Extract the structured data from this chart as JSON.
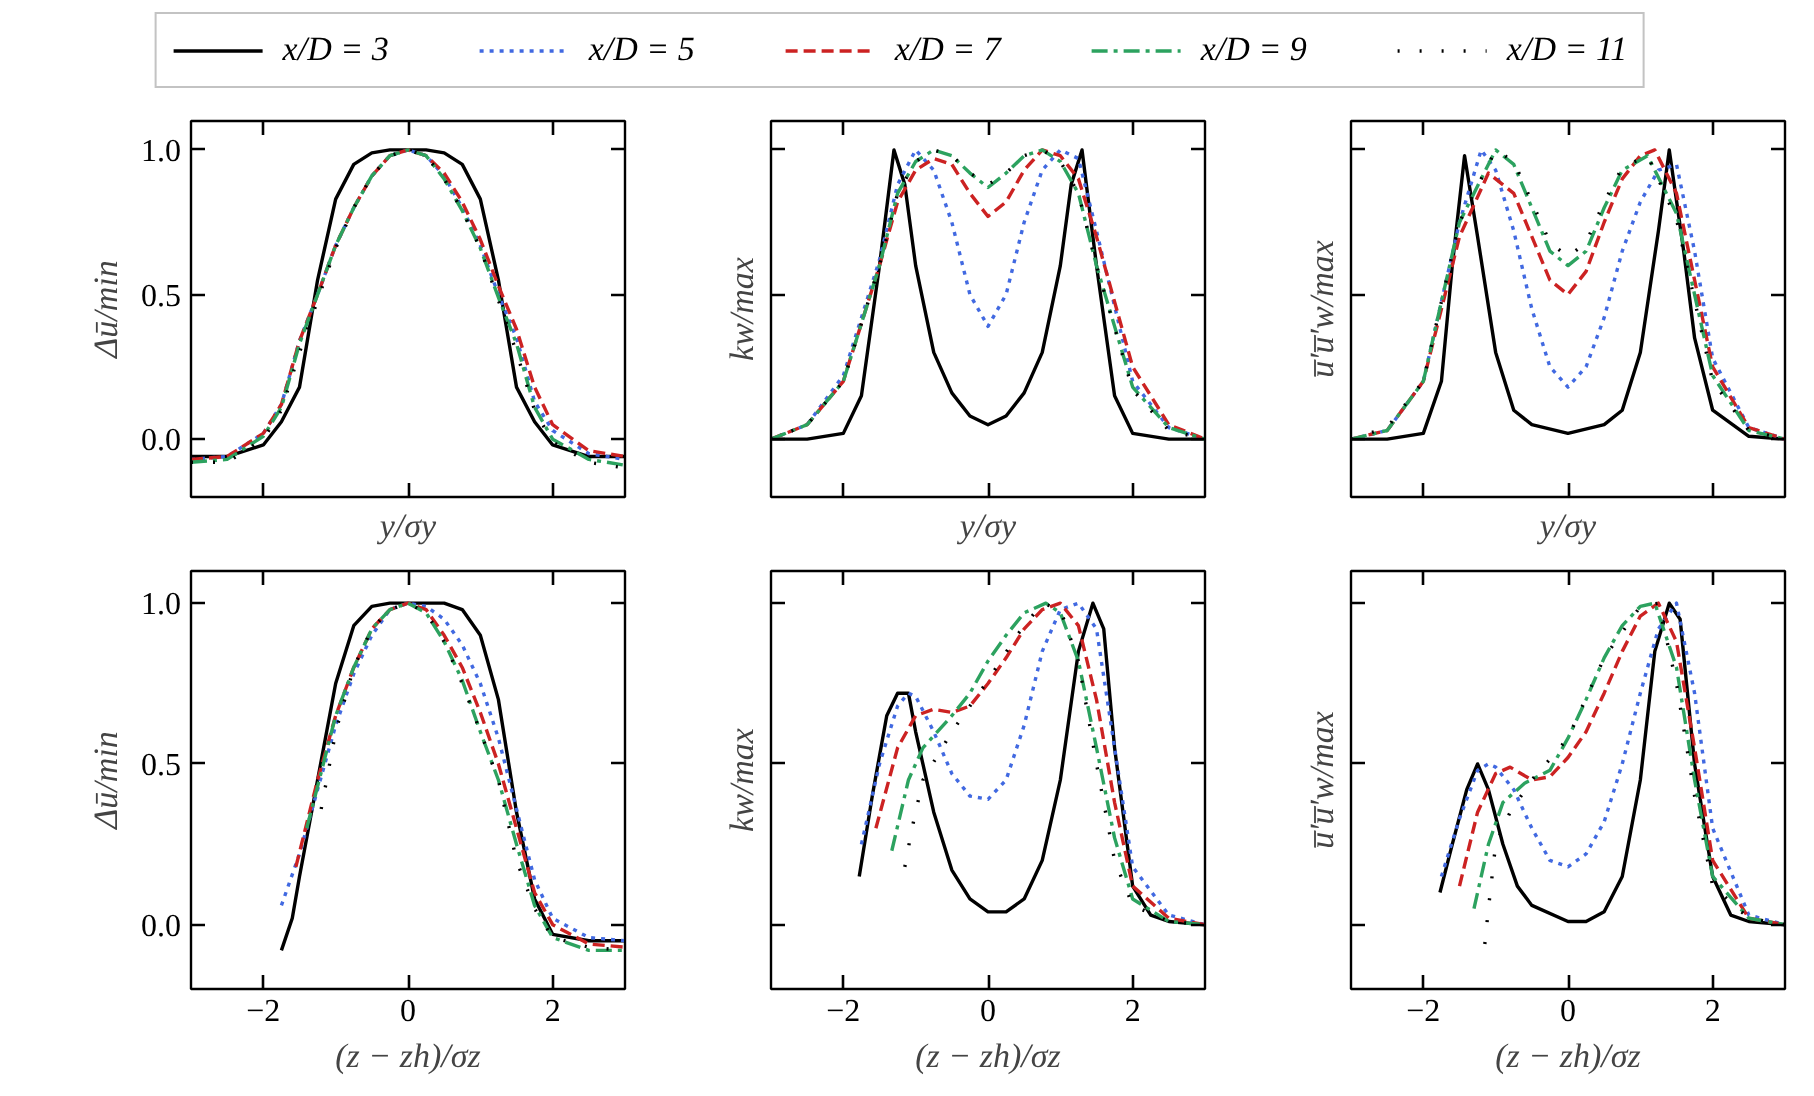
{
  "chart_data": [
    {
      "type": "line",
      "ylabel": "Δū/min",
      "xlabel": "y/σy",
      "xlim": [
        -3,
        3
      ],
      "ylim": [
        -0.2,
        1.1
      ],
      "xticks": [
        {
          "value": -2,
          "label": null
        },
        {
          "value": 0,
          "label": null
        },
        {
          "value": 2,
          "label": null
        }
      ],
      "yticks": [
        {
          "value": 0,
          "label": "0.0"
        },
        {
          "value": 0.5,
          "label": "0.5"
        },
        {
          "value": 1,
          "label": "1.0"
        }
      ],
      "tick_labels": "y",
      "legend": "top",
      "series": [
        {
          "name": "x/D = 3",
          "color": "#000000",
          "line_style": "solid",
          "x": [
            -3,
            -2.5,
            -2,
            -1.75,
            -1.5,
            -1.25,
            -1,
            -0.75,
            -0.5,
            -0.25,
            0,
            0.25,
            0.5,
            0.75,
            1,
            1.25,
            1.5,
            1.75,
            2,
            2.5,
            3
          ],
          "values": [
            -0.06,
            -0.06,
            -0.02,
            0.06,
            0.18,
            0.55,
            0.83,
            0.95,
            0.99,
            1.0,
            1.0,
            1.0,
            0.99,
            0.95,
            0.83,
            0.55,
            0.18,
            0.06,
            -0.02,
            -0.06,
            -0.06
          ]
        },
        {
          "name": "x/D = 5",
          "color": "#4169e1",
          "line_style": "dotted",
          "x": [
            -3,
            -2.5,
            -2,
            -1.75,
            -1.5,
            -1.25,
            -1,
            -0.75,
            -0.5,
            -0.25,
            0,
            0.25,
            0.5,
            0.75,
            1,
            1.25,
            1.5,
            1.75,
            2,
            2.5,
            3
          ],
          "values": [
            -0.07,
            -0.06,
            0.02,
            0.12,
            0.34,
            0.5,
            0.67,
            0.8,
            0.91,
            0.98,
            1.0,
            0.98,
            0.91,
            0.8,
            0.67,
            0.5,
            0.35,
            0.13,
            0.03,
            -0.05,
            -0.07
          ]
        },
        {
          "name": "x/D = 7",
          "color": "#cc2222",
          "line_style": "dashed",
          "x": [
            -3,
            -2.5,
            -2,
            -1.75,
            -1.5,
            -1.25,
            -1,
            -0.75,
            -0.5,
            -0.25,
            0,
            0.25,
            0.5,
            0.75,
            1,
            1.25,
            1.5,
            1.75,
            2,
            2.5,
            3
          ],
          "values": [
            -0.07,
            -0.06,
            0.02,
            0.12,
            0.34,
            0.5,
            0.67,
            0.8,
            0.91,
            0.98,
            1.0,
            0.98,
            0.92,
            0.82,
            0.69,
            0.53,
            0.38,
            0.18,
            0.05,
            -0.04,
            -0.06
          ]
        },
        {
          "name": "x/D = 9",
          "color": "#2ca25f",
          "line_style": "dashdot",
          "x": [
            -3,
            -2.5,
            -2,
            -1.75,
            -1.5,
            -1.25,
            -1,
            -0.75,
            -0.5,
            -0.25,
            0,
            0.25,
            0.5,
            0.75,
            1,
            1.25,
            1.5,
            1.75,
            2,
            2.5,
            3
          ],
          "values": [
            -0.08,
            -0.07,
            0.01,
            0.11,
            0.33,
            0.5,
            0.67,
            0.8,
            0.91,
            0.98,
            1.0,
            0.98,
            0.9,
            0.79,
            0.66,
            0.49,
            0.33,
            0.11,
            0.0,
            -0.07,
            -0.09
          ]
        },
        {
          "name": "x/D = 11",
          "color": "#000000",
          "line_style": "loosely_dotted",
          "x": [
            -3,
            -2.5,
            -2,
            -1.75,
            -1.5,
            -1.25,
            -1,
            -0.75,
            -0.5,
            -0.25,
            0,
            0.25,
            0.5,
            0.75,
            1,
            1.25,
            1.5,
            1.75,
            2,
            2.5,
            3
          ],
          "values": [
            -0.08,
            -0.08,
            0.0,
            0.1,
            0.3,
            0.48,
            0.66,
            0.8,
            0.91,
            0.98,
            1.0,
            0.98,
            0.9,
            0.79,
            0.66,
            0.48,
            0.3,
            0.1,
            -0.01,
            -0.08,
            -0.1
          ]
        }
      ]
    },
    {
      "type": "line",
      "ylabel": "kw/max",
      "xlabel": "y/σy",
      "xlim": [
        -3,
        3
      ],
      "ylim": [
        -0.2,
        1.1
      ],
      "xticks": [
        {
          "value": -2,
          "label": null
        },
        {
          "value": 0,
          "label": null
        },
        {
          "value": 2,
          "label": null
        }
      ],
      "yticks": [
        {
          "value": 0,
          "label": null
        },
        {
          "value": 0.5,
          "label": null
        },
        {
          "value": 1,
          "label": null
        }
      ],
      "tick_labels": false,
      "series": [
        {
          "color": "#000000",
          "line_style": "solid",
          "x": [
            -3,
            -2.5,
            -2,
            -1.75,
            -1.5,
            -1.3,
            -1.15,
            -1,
            -0.75,
            -0.5,
            -0.25,
            0,
            0.25,
            0.5,
            0.75,
            1,
            1.15,
            1.3,
            1.5,
            1.75,
            2,
            2.5,
            3
          ],
          "values": [
            0,
            0,
            0.02,
            0.15,
            0.6,
            1.0,
            0.88,
            0.6,
            0.3,
            0.16,
            0.08,
            0.05,
            0.08,
            0.16,
            0.3,
            0.6,
            0.88,
            1.0,
            0.6,
            0.15,
            0.02,
            0,
            0
          ]
        },
        {
          "color": "#4169e1",
          "line_style": "dotted",
          "x": [
            -3,
            -2.5,
            -2,
            -1.5,
            -1.25,
            -1,
            -0.75,
            -0.5,
            -0.25,
            0,
            0.25,
            0.5,
            0.75,
            1,
            1.25,
            1.5,
            2,
            2.5,
            3
          ],
          "values": [
            0,
            0.05,
            0.22,
            0.62,
            0.88,
            1.0,
            0.93,
            0.75,
            0.5,
            0.39,
            0.5,
            0.75,
            0.93,
            1.0,
            0.97,
            0.72,
            0.2,
            0.04,
            0
          ]
        },
        {
          "color": "#cc2222",
          "line_style": "dashed",
          "x": [
            -3,
            -2.5,
            -2,
            -1.5,
            -1.25,
            -1,
            -0.75,
            -0.5,
            -0.25,
            0,
            0.25,
            0.5,
            0.75,
            1,
            1.25,
            1.5,
            2,
            2.5,
            3
          ],
          "values": [
            0,
            0.05,
            0.2,
            0.6,
            0.82,
            0.93,
            0.97,
            0.95,
            0.85,
            0.77,
            0.82,
            0.93,
            1.0,
            0.98,
            0.9,
            0.7,
            0.25,
            0.05,
            0
          ]
        },
        {
          "color": "#2ca25f",
          "line_style": "dashdot",
          "x": [
            -3,
            -2.5,
            -2,
            -1.5,
            -1.25,
            -1,
            -0.75,
            -0.5,
            -0.25,
            0,
            0.25,
            0.5,
            0.75,
            1,
            1.25,
            1.5,
            2,
            2.5,
            3
          ],
          "values": [
            0,
            0.05,
            0.2,
            0.6,
            0.85,
            0.96,
            1.0,
            0.98,
            0.92,
            0.87,
            0.92,
            0.98,
            1.0,
            0.96,
            0.85,
            0.6,
            0.18,
            0.04,
            0
          ]
        },
        {
          "color": "#000000",
          "line_style": "loosely_dotted",
          "x": [
            -3,
            -2.5,
            -2,
            -1.5,
            -1.25,
            -1,
            -0.75,
            -0.5,
            -0.25,
            0,
            0.25,
            0.5,
            0.75,
            1,
            1.25,
            1.5,
            2,
            2.5,
            3
          ],
          "values": [
            0,
            0.05,
            0.2,
            0.6,
            0.85,
            0.96,
            1.0,
            0.98,
            0.92,
            0.88,
            0.92,
            0.98,
            1.0,
            0.96,
            0.85,
            0.6,
            0.17,
            0.03,
            0
          ]
        }
      ]
    },
    {
      "type": "line",
      "ylabel": "u̅′u̅′w/max",
      "xlabel": "y/σy",
      "xlim": [
        -3,
        3
      ],
      "ylim": [
        -0.2,
        1.1
      ],
      "xticks": [
        {
          "value": -2,
          "label": null
        },
        {
          "value": 0,
          "label": null
        },
        {
          "value": 2,
          "label": null
        }
      ],
      "yticks": [
        {
          "value": 0,
          "label": null
        },
        {
          "value": 0.5,
          "label": null
        },
        {
          "value": 1,
          "label": null
        }
      ],
      "tick_labels": false,
      "series": [
        {
          "color": "#000000",
          "line_style": "solid",
          "x": [
            -3,
            -2.5,
            -2,
            -1.75,
            -1.6,
            -1.43,
            -1.25,
            -1,
            -0.75,
            -0.5,
            0,
            0.5,
            0.75,
            1,
            1.25,
            1.4,
            1.6,
            1.75,
            2,
            2.5,
            3
          ],
          "values": [
            0,
            0,
            0.02,
            0.2,
            0.6,
            0.98,
            0.7,
            0.3,
            0.1,
            0.05,
            0.02,
            0.05,
            0.1,
            0.3,
            0.72,
            1.0,
            0.65,
            0.35,
            0.1,
            0.01,
            0
          ]
        },
        {
          "color": "#4169e1",
          "line_style": "dotted",
          "x": [
            -3,
            -2.5,
            -2,
            -1.5,
            -1.2,
            -1,
            -0.75,
            -0.5,
            -0.25,
            0,
            0.25,
            0.5,
            0.75,
            1,
            1.25,
            1.5,
            1.75,
            2,
            2.5,
            3
          ],
          "values": [
            0,
            0.03,
            0.2,
            0.75,
            1.0,
            0.93,
            0.72,
            0.45,
            0.25,
            0.18,
            0.25,
            0.42,
            0.65,
            0.82,
            0.93,
            0.95,
            0.65,
            0.28,
            0.04,
            0
          ]
        },
        {
          "color": "#cc2222",
          "line_style": "dashed",
          "x": [
            -3,
            -2.5,
            -2,
            -1.5,
            -1.1,
            -0.75,
            -0.5,
            -0.25,
            0,
            0.25,
            0.5,
            0.75,
            1,
            1.2,
            1.5,
            1.75,
            2,
            2.5,
            3
          ],
          "values": [
            0,
            0.03,
            0.2,
            0.7,
            0.92,
            0.85,
            0.7,
            0.55,
            0.5,
            0.58,
            0.75,
            0.9,
            0.98,
            1.0,
            0.85,
            0.55,
            0.25,
            0.04,
            0
          ]
        },
        {
          "color": "#2ca25f",
          "line_style": "dashdot",
          "x": [
            -3,
            -2.5,
            -2,
            -1.5,
            -1,
            -0.75,
            -0.5,
            -0.25,
            0,
            0.25,
            0.5,
            0.75,
            1.1,
            1.5,
            1.75,
            2,
            2.5,
            3
          ],
          "values": [
            0,
            0.03,
            0.2,
            0.75,
            1.0,
            0.95,
            0.8,
            0.65,
            0.6,
            0.65,
            0.8,
            0.93,
            0.98,
            0.78,
            0.5,
            0.22,
            0.03,
            0
          ]
        },
        {
          "color": "#000000",
          "line_style": "loosely_dotted",
          "x": [
            -3,
            -2.5,
            -2,
            -1.5,
            -1,
            -0.75,
            -0.5,
            -0.25,
            0,
            0.25,
            0.5,
            0.75,
            1.1,
            1.5,
            1.75,
            2,
            2.5,
            3
          ],
          "values": [
            0,
            0.04,
            0.2,
            0.75,
            1.0,
            0.96,
            0.82,
            0.68,
            0.63,
            0.68,
            0.82,
            0.94,
            0.98,
            0.76,
            0.48,
            0.2,
            0.03,
            0
          ]
        }
      ]
    },
    {
      "type": "line",
      "ylabel": "Δū/min",
      "xlabel": "(z − zh)/σz",
      "xlim": [
        -3,
        3
      ],
      "ylim": [
        -0.2,
        1.1
      ],
      "xticks": [
        {
          "value": -2,
          "label": "−2"
        },
        {
          "value": 0,
          "label": "0"
        },
        {
          "value": 2,
          "label": "2"
        }
      ],
      "yticks": [
        {
          "value": 0,
          "label": "0.0"
        },
        {
          "value": 0.5,
          "label": "0.5"
        },
        {
          "value": 1,
          "label": "1.0"
        }
      ],
      "series": [
        {
          "color": "#000000",
          "line_style": "solid",
          "x": [
            -1.75,
            -1.6,
            -1.5,
            -1.25,
            -1,
            -0.75,
            -0.5,
            -0.25,
            0,
            0.5,
            0.75,
            1,
            1.25,
            1.5,
            1.75,
            2,
            2.5,
            3
          ],
          "values": [
            -0.08,
            0.02,
            0.15,
            0.45,
            0.75,
            0.93,
            0.99,
            1.0,
            1.0,
            1.0,
            0.98,
            0.9,
            0.7,
            0.35,
            0.08,
            -0.03,
            -0.05,
            -0.05
          ]
        },
        {
          "color": "#4169e1",
          "line_style": "dotted",
          "x": [
            -1.75,
            -1.5,
            -1.25,
            -1,
            -0.75,
            -0.5,
            -0.25,
            0,
            0.25,
            0.5,
            0.75,
            1,
            1.25,
            1.5,
            1.75,
            2,
            2.5,
            3
          ],
          "values": [
            0.06,
            0.22,
            0.42,
            0.62,
            0.78,
            0.9,
            0.98,
            1.0,
            0.99,
            0.95,
            0.87,
            0.75,
            0.58,
            0.36,
            0.14,
            0.02,
            -0.04,
            -0.05
          ]
        },
        {
          "color": "#cc2222",
          "line_style": "dashed",
          "x": [
            -1.55,
            -1.25,
            -1,
            -0.75,
            -0.5,
            -0.25,
            0,
            0.25,
            0.5,
            0.75,
            1,
            1.25,
            1.5,
            1.75,
            2,
            2.5,
            3
          ],
          "values": [
            0.18,
            0.45,
            0.65,
            0.8,
            0.92,
            0.98,
            1.0,
            0.98,
            0.9,
            0.8,
            0.66,
            0.5,
            0.3,
            0.1,
            0.0,
            -0.06,
            -0.07
          ]
        },
        {
          "color": "#2ca25f",
          "line_style": "dashdot",
          "x": [
            -1.4,
            -1.25,
            -1,
            -0.75,
            -0.5,
            -0.25,
            0,
            0.25,
            0.5,
            0.75,
            1,
            1.25,
            1.5,
            1.75,
            2,
            2.5,
            3
          ],
          "values": [
            0.3,
            0.43,
            0.65,
            0.8,
            0.92,
            0.98,
            1.0,
            0.97,
            0.88,
            0.76,
            0.6,
            0.45,
            0.25,
            0.06,
            -0.04,
            -0.08,
            -0.08
          ]
        },
        {
          "color": "#000000",
          "line_style": "loosely_dotted",
          "x": [
            -1.2,
            -1,
            -0.75,
            -0.5,
            -0.25,
            0,
            0.25,
            0.5,
            0.75,
            1,
            1.25,
            1.5,
            1.75,
            2,
            2.5,
            3
          ],
          "values": [
            0.36,
            0.6,
            0.8,
            0.92,
            0.98,
            1.0,
            0.97,
            0.88,
            0.75,
            0.6,
            0.45,
            0.2,
            0.05,
            -0.04,
            -0.07,
            -0.08
          ]
        }
      ]
    },
    {
      "type": "line",
      "ylabel": "kw/max",
      "xlabel": "(z − zh)/σz",
      "xlim": [
        -3,
        3
      ],
      "ylim": [
        -0.2,
        1.1
      ],
      "xticks": [
        {
          "value": -2,
          "label": "−2"
        },
        {
          "value": 0,
          "label": "0"
        },
        {
          "value": 2,
          "label": "2"
        }
      ],
      "yticks": [
        {
          "value": 0,
          "label": null
        },
        {
          "value": 0.5,
          "label": null
        },
        {
          "value": 1,
          "label": null
        }
      ],
      "tick_labels": "x",
      "series": [
        {
          "color": "#000000",
          "line_style": "solid",
          "x": [
            -1.78,
            -1.6,
            -1.4,
            -1.25,
            -1.1,
            -1,
            -0.75,
            -0.5,
            -0.25,
            0,
            0.25,
            0.5,
            0.75,
            1,
            1.25,
            1.45,
            1.6,
            1.75,
            2,
            2.25,
            2.5,
            3
          ],
          "values": [
            0.15,
            0.4,
            0.65,
            0.72,
            0.72,
            0.6,
            0.35,
            0.17,
            0.08,
            0.04,
            0.04,
            0.08,
            0.2,
            0.45,
            0.85,
            1.0,
            0.92,
            0.55,
            0.12,
            0.03,
            0.01,
            0
          ]
        },
        {
          "color": "#4169e1",
          "line_style": "dotted",
          "x": [
            -1.75,
            -1.5,
            -1.25,
            -1.1,
            -1,
            -0.75,
            -0.5,
            -0.25,
            0,
            0.25,
            0.5,
            0.75,
            1,
            1.25,
            1.5,
            1.75,
            2,
            2.5,
            3
          ],
          "values": [
            0.25,
            0.5,
            0.68,
            0.72,
            0.71,
            0.6,
            0.47,
            0.4,
            0.39,
            0.45,
            0.62,
            0.85,
            0.98,
            1.0,
            0.92,
            0.55,
            0.18,
            0.03,
            0
          ]
        },
        {
          "color": "#cc2222",
          "line_style": "dashed",
          "x": [
            -1.55,
            -1.25,
            -1,
            -0.75,
            -0.5,
            -0.25,
            0,
            0.25,
            0.5,
            0.75,
            1,
            1.25,
            1.5,
            1.75,
            2,
            2.5,
            3
          ],
          "values": [
            0.3,
            0.55,
            0.65,
            0.67,
            0.66,
            0.68,
            0.75,
            0.83,
            0.92,
            0.98,
            1.0,
            0.93,
            0.7,
            0.38,
            0.12,
            0.02,
            0
          ]
        },
        {
          "color": "#2ca25f",
          "line_style": "dashdot",
          "x": [
            -1.33,
            -1.1,
            -0.9,
            -0.5,
            -0.25,
            0,
            0.25,
            0.5,
            0.8,
            1,
            1.25,
            1.5,
            1.75,
            2,
            2.5,
            3
          ],
          "values": [
            0.23,
            0.45,
            0.55,
            0.65,
            0.72,
            0.82,
            0.9,
            0.97,
            1.0,
            0.97,
            0.82,
            0.55,
            0.27,
            0.08,
            0.01,
            0
          ]
        },
        {
          "color": "#000000",
          "line_style": "loosely_dotted",
          "x": [
            -1.15,
            -1.05,
            -0.9,
            -0.5,
            0,
            0.4,
            0.75,
            1,
            1.25,
            1.5,
            1.75,
            2,
            2.5,
            3
          ],
          "values": [
            0.18,
            0.3,
            0.45,
            0.6,
            0.76,
            0.9,
            1.0,
            0.98,
            0.82,
            0.5,
            0.2,
            0.06,
            0.01,
            0
          ]
        }
      ]
    },
    {
      "type": "line",
      "ylabel": "u̅′u̅′w/max",
      "xlabel": "(z − zh)/σz",
      "xlim": [
        -3,
        3
      ],
      "ylim": [
        -0.2,
        1.1
      ],
      "xticks": [
        {
          "value": -2,
          "label": "−2"
        },
        {
          "value": 0,
          "label": "0"
        },
        {
          "value": 2,
          "label": "2"
        }
      ],
      "yticks": [
        {
          "value": 0,
          "label": null
        },
        {
          "value": 0.5,
          "label": null
        },
        {
          "value": 1,
          "label": null
        }
      ],
      "tick_labels": "x",
      "series": [
        {
          "color": "#000000",
          "line_style": "solid",
          "x": [
            -1.77,
            -1.6,
            -1.4,
            -1.25,
            -1.1,
            -0.9,
            -0.7,
            -0.5,
            0,
            0.25,
            0.5,
            0.75,
            1,
            1.2,
            1.4,
            1.55,
            1.75,
            2,
            2.25,
            2.5,
            3
          ],
          "values": [
            0.1,
            0.25,
            0.42,
            0.5,
            0.42,
            0.25,
            0.12,
            0.06,
            0.01,
            0.01,
            0.04,
            0.15,
            0.45,
            0.85,
            1.0,
            0.95,
            0.5,
            0.15,
            0.03,
            0.01,
            0
          ]
        },
        {
          "color": "#4169e1",
          "line_style": "dotted",
          "x": [
            -1.75,
            -1.5,
            -1.25,
            -1.1,
            -1,
            -0.75,
            -0.5,
            -0.25,
            0,
            0.25,
            0.5,
            0.75,
            1,
            1.25,
            1.5,
            1.75,
            2,
            2.5,
            3
          ],
          "values": [
            0.15,
            0.33,
            0.48,
            0.5,
            0.49,
            0.42,
            0.3,
            0.2,
            0.18,
            0.22,
            0.32,
            0.5,
            0.72,
            0.92,
            1.0,
            0.72,
            0.3,
            0.03,
            0
          ]
        },
        {
          "color": "#cc2222",
          "line_style": "dashed",
          "x": [
            -1.5,
            -1.25,
            -1,
            -0.8,
            -0.5,
            -0.25,
            0,
            0.25,
            0.5,
            0.75,
            1,
            1.25,
            1.5,
            1.75,
            2,
            2.5,
            3
          ],
          "values": [
            0.12,
            0.35,
            0.47,
            0.49,
            0.45,
            0.46,
            0.52,
            0.6,
            0.72,
            0.85,
            0.96,
            1.0,
            0.88,
            0.55,
            0.2,
            0.02,
            0
          ]
        },
        {
          "color": "#2ca25f",
          "line_style": "dashdot",
          "x": [
            -1.3,
            -1.1,
            -0.9,
            -0.6,
            -0.25,
            0,
            0.25,
            0.5,
            0.75,
            1,
            1.2,
            1.5,
            1.75,
            2,
            2.5,
            3
          ],
          "values": [
            0.05,
            0.25,
            0.38,
            0.44,
            0.48,
            0.58,
            0.7,
            0.83,
            0.93,
            0.99,
            1.0,
            0.8,
            0.45,
            0.15,
            0.02,
            0
          ]
        },
        {
          "color": "#000000",
          "line_style": "loosely_dotted",
          "x": [
            -1.15,
            -1.1,
            -1,
            -0.8,
            -0.5,
            0,
            0.5,
            1,
            1.25,
            1.5,
            1.75,
            2,
            2.5,
            3
          ],
          "values": [
            -0.06,
            0.05,
            0.25,
            0.35,
            0.45,
            0.58,
            0.83,
            0.99,
            1.0,
            0.75,
            0.4,
            0.12,
            0.02,
            0
          ]
        }
      ]
    }
  ]
}
